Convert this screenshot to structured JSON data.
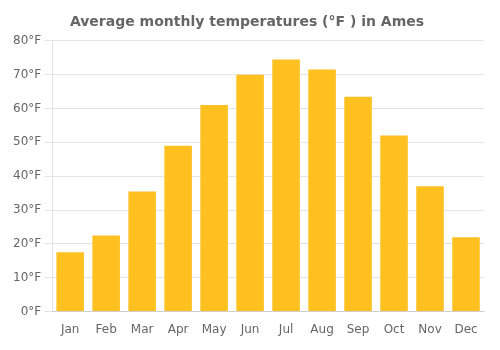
{
  "chart_data": {
    "type": "bar",
    "title": "Average monthly temperatures (°F ) in Ames",
    "categories": [
      "Jan",
      "Feb",
      "Mar",
      "Apr",
      "May",
      "Jun",
      "Jul",
      "Aug",
      "Sep",
      "Oct",
      "Nov",
      "Dec"
    ],
    "values": [
      17.5,
      22.5,
      35.5,
      49.0,
      61.0,
      70.0,
      74.5,
      71.5,
      63.5,
      52.0,
      37.0,
      22.0
    ],
    "color": "#FFC020",
    "ylim": [
      0,
      80
    ],
    "yticks": [
      {
        "value": 0,
        "label": "0°F"
      },
      {
        "value": 10,
        "label": "10°F"
      },
      {
        "value": 20,
        "label": "20°F"
      },
      {
        "value": 30,
        "label": "30°F"
      },
      {
        "value": 40,
        "label": "40°F"
      },
      {
        "value": 50,
        "label": "50°F"
      },
      {
        "value": 60,
        "label": "60°F"
      },
      {
        "value": 70,
        "label": "70°F"
      },
      {
        "value": 80,
        "label": "80°F"
      }
    ],
    "grid": true
  }
}
